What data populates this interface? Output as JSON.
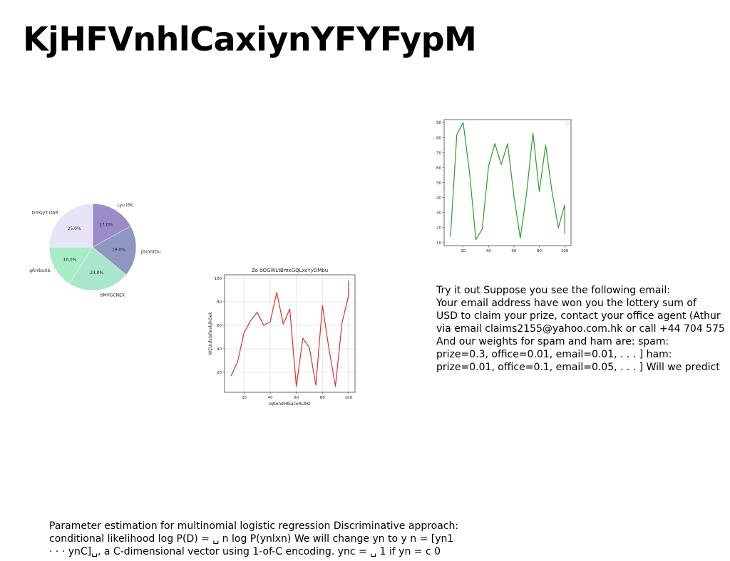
{
  "slide": {
    "title": "KjHFVnhlCaxiynYFYFypM"
  },
  "right_text": {
    "lines": [
      "Try it out Suppose you see the following email:",
      "Your email address have won you the lottery sum of",
      "USD to claim your prize, contact your office agent (Athur",
      "via email claims2155@yahoo.com.hk or call +44 704 575",
      "And our weights for spam and ham are: spam:",
      "prize=0.3, office=0.01, email=0.01, . . . ] ham:",
      "prize=0.01, office=0.1, email=0.05, . . . ] Will we predict"
    ]
  },
  "bottom_text": {
    "lines": [
      "Parameter estimation for multinomial logistic regression Discriminative approach:",
      "conditional likelihood log P(D) = ␣ n log P(ynlxn) We will change yn to y n = [yn1",
      "· · · ynC]␣, a C-dimensional vector using 1-of-C encoding. ync = ␣ 1 if yn = c 0"
    ]
  },
  "chart_data": [
    {
      "type": "pie",
      "title": "",
      "slices": [
        {
          "label": "Lyu iEK",
          "value": 17.0,
          "pct_label": "17.0%",
          "color": "#9b8bc6"
        },
        {
          "label": "jGuVUOu",
          "value": 19.0,
          "pct_label": "19.0%",
          "color": "#8f96c2"
        },
        {
          "label": "bMVGCNEX",
          "value": 23.0,
          "pct_label": "23.0%",
          "color": "#a9e6cc"
        },
        {
          "label": "gRrcbxXb",
          "value": 16.0,
          "pct_label": "16.0%",
          "color": "#a8edc4"
        },
        {
          "label": "DmQyT DAR",
          "value": 25.0,
          "pct_label": "25.0%",
          "color": "#e8e4f8"
        }
      ]
    },
    {
      "type": "line",
      "title": "Zo dOGWLtBmkGQLxcYyDMbu",
      "xlabel": "IqKondHIEaceAUbO",
      "ylabel": "WEUufzlaRexkjhGek",
      "xlim": [
        5,
        105
      ],
      "ylim": [
        3,
        103
      ],
      "xticks": [
        20,
        40,
        60,
        80,
        100
      ],
      "yticks": [
        20,
        40,
        60,
        80,
        100
      ],
      "grid": true,
      "legend": "none",
      "series": [
        {
          "color": "#e03030",
          "x": [
            10,
            15,
            20,
            25,
            30,
            35,
            40,
            45,
            50,
            55,
            60,
            65,
            70,
            75,
            80,
            85,
            90,
            95,
            100
          ],
          "y": [
            17,
            29,
            54,
            64,
            71,
            60,
            63,
            88,
            61,
            74,
            8,
            49,
            41,
            9,
            77,
            40,
            8,
            62,
            85
          ]
        }
      ],
      "extra_point": {
        "x": 100,
        "y": 98
      }
    },
    {
      "type": "line",
      "title": "",
      "xlabel": "",
      "ylabel": "",
      "xlim": [
        5,
        105
      ],
      "ylim": [
        8,
        92
      ],
      "xticks": [
        20,
        40,
        60,
        80,
        100
      ],
      "yticks": [
        10,
        20,
        30,
        40,
        50,
        60,
        70,
        80,
        90
      ],
      "grid": false,
      "legend": "top-right",
      "series": [
        {
          "color": "#2e9a2e",
          "x": [
            10,
            15,
            20,
            25,
            30,
            35,
            40,
            45,
            50,
            55,
            60,
            65,
            70,
            75,
            80,
            85,
            90,
            95,
            100
          ],
          "y": [
            14,
            82,
            90,
            57,
            12,
            19,
            61,
            76,
            62,
            76,
            41,
            13,
            43,
            83,
            44,
            75,
            44,
            20,
            35
          ]
        }
      ],
      "extra_point": {
        "x": 100,
        "y": 16
      }
    }
  ]
}
